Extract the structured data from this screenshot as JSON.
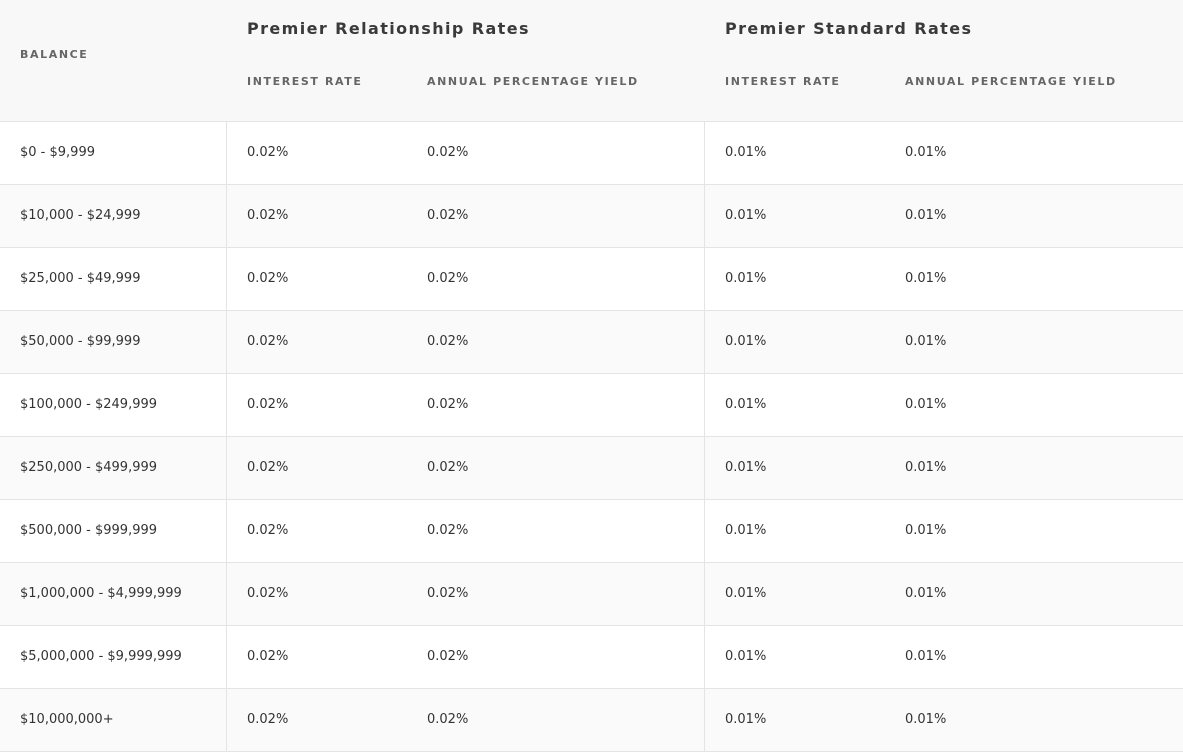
{
  "header": {
    "balance_label": "BALANCE",
    "groups": [
      {
        "title": "Premier Relationship Rates",
        "interest_label": "INTEREST RATE",
        "apy_label": "ANNUAL PERCENTAGE YIELD"
      },
      {
        "title": "Premier Standard Rates",
        "interest_label": "INTEREST RATE",
        "apy_label": "ANNUAL PERCENTAGE YIELD"
      }
    ]
  },
  "rows": [
    {
      "balance": "$0 - $9,999",
      "rel_rate": "0.02%",
      "rel_apy": "0.02%",
      "std_rate": "0.01%",
      "std_apy": "0.01%"
    },
    {
      "balance": "$10,000 - $24,999",
      "rel_rate": "0.02%",
      "rel_apy": "0.02%",
      "std_rate": "0.01%",
      "std_apy": "0.01%"
    },
    {
      "balance": "$25,000 - $49,999",
      "rel_rate": "0.02%",
      "rel_apy": "0.02%",
      "std_rate": "0.01%",
      "std_apy": "0.01%"
    },
    {
      "balance": "$50,000 - $99,999",
      "rel_rate": "0.02%",
      "rel_apy": "0.02%",
      "std_rate": "0.01%",
      "std_apy": "0.01%"
    },
    {
      "balance": "$100,000 - $249,999",
      "rel_rate": "0.02%",
      "rel_apy": "0.02%",
      "std_rate": "0.01%",
      "std_apy": "0.01%"
    },
    {
      "balance": "$250,000 - $499,999",
      "rel_rate": "0.02%",
      "rel_apy": "0.02%",
      "std_rate": "0.01%",
      "std_apy": "0.01%"
    },
    {
      "balance": "$500,000 - $999,999",
      "rel_rate": "0.02%",
      "rel_apy": "0.02%",
      "std_rate": "0.01%",
      "std_apy": "0.01%"
    },
    {
      "balance": "$1,000,000 - $4,999,999",
      "rel_rate": "0.02%",
      "rel_apy": "0.02%",
      "std_rate": "0.01%",
      "std_apy": "0.01%"
    },
    {
      "balance": "$5,000,000 - $9,999,999",
      "rel_rate": "0.02%",
      "rel_apy": "0.02%",
      "std_rate": "0.01%",
      "std_apy": "0.01%"
    },
    {
      "balance": "$10,000,000+",
      "rel_rate": "0.02%",
      "rel_apy": "0.02%",
      "std_rate": "0.01%",
      "std_apy": "0.01%"
    }
  ]
}
